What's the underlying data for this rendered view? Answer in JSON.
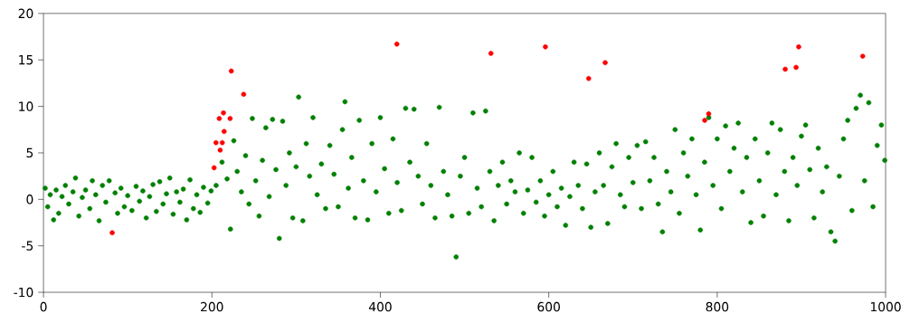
{
  "chart_data": {
    "type": "scatter",
    "xlim": [
      0,
      1000
    ],
    "ylim": [
      -10,
      20
    ],
    "xticks": [
      0,
      200,
      400,
      600,
      800,
      1000
    ],
    "yticks": [
      -10,
      -5,
      0,
      5,
      10,
      15,
      20
    ],
    "marker": "circle",
    "series": [
      {
        "color": "#008000",
        "x": [
          2,
          5,
          8,
          12,
          15,
          18,
          22,
          26,
          30,
          35,
          38,
          42,
          46,
          50,
          55,
          58,
          62,
          66,
          70,
          74,
          78,
          85,
          88,
          92,
          96,
          100,
          105,
          110,
          114,
          118,
          122,
          126,
          130,
          134,
          138,
          142,
          146,
          150,
          154,
          158,
          162,
          166,
          170,
          174,
          178,
          182,
          186,
          190,
          195,
          199,
          205,
          212,
          218,
          222,
          226,
          230,
          235,
          240,
          244,
          248,
          252,
          256,
          260,
          264,
          268,
          272,
          276,
          280,
          284,
          288,
          292,
          296,
          300,
          303,
          308,
          312,
          316,
          320,
          325,
          330,
          335,
          340,
          345,
          350,
          355,
          358,
          362,
          366,
          370,
          375,
          380,
          385,
          390,
          395,
          400,
          405,
          410,
          415,
          420,
          425,
          430,
          435,
          440,
          445,
          450,
          455,
          460,
          465,
          470,
          475,
          480,
          485,
          490,
          495,
          500,
          505,
          510,
          515,
          520,
          525,
          530,
          535,
          540,
          545,
          550,
          555,
          560,
          565,
          570,
          575,
          580,
          585,
          590,
          595,
          600,
          605,
          610,
          615,
          620,
          625,
          630,
          635,
          640,
          645,
          650,
          655,
          660,
          665,
          670,
          675,
          680,
          685,
          690,
          695,
          700,
          705,
          710,
          715,
          720,
          725,
          730,
          735,
          740,
          745,
          750,
          755,
          760,
          765,
          770,
          775,
          780,
          785,
          790,
          795,
          800,
          805,
          810,
          815,
          820,
          825,
          830,
          835,
          840,
          845,
          850,
          855,
          860,
          865,
          870,
          875,
          880,
          885,
          890,
          895,
          900,
          905,
          910,
          915,
          920,
          925,
          930,
          935,
          940,
          945,
          950,
          955,
          960,
          965,
          970,
          975,
          980,
          985,
          990,
          995,
          999
        ],
        "values": [
          1.2,
          -0.8,
          0.5,
          -2.2,
          1.0,
          -1.5,
          0.3,
          1.5,
          -0.5,
          0.8,
          2.3,
          -1.8,
          0.2,
          1.0,
          -1.0,
          2.0,
          0.5,
          -2.3,
          1.5,
          -0.3,
          2.0,
          0.7,
          -1.5,
          1.2,
          -0.8,
          0.4,
          -1.2,
          1.4,
          -0.2,
          0.9,
          -2.0,
          0.3,
          1.6,
          -1.3,
          1.9,
          -0.5,
          0.6,
          2.3,
          -1.6,
          0.8,
          -0.3,
          1.1,
          -2.2,
          2.1,
          -1.0,
          0.5,
          -1.4,
          1.3,
          -0.4,
          0.9,
          1.5,
          4.0,
          2.2,
          -3.2,
          6.3,
          3.0,
          0.8,
          4.7,
          -0.5,
          8.7,
          2.0,
          -1.8,
          4.2,
          7.7,
          0.3,
          8.6,
          3.2,
          -4.2,
          8.4,
          1.5,
          5.0,
          -2.0,
          3.5,
          11.0,
          -2.3,
          6.0,
          2.5,
          8.8,
          0.5,
          3.8,
          -1.0,
          5.8,
          2.7,
          -0.8,
          7.5,
          10.5,
          1.2,
          4.5,
          -2.0,
          8.5,
          2.0,
          -2.2,
          6.0,
          0.8,
          8.8,
          3.3,
          -1.5,
          6.5,
          1.8,
          -1.2,
          9.8,
          4.0,
          9.7,
          2.5,
          -0.5,
          6.0,
          1.5,
          -2.0,
          9.9,
          3.0,
          0.5,
          -1.8,
          -6.2,
          2.5,
          4.5,
          -1.5,
          9.3,
          1.2,
          -0.8,
          9.5,
          3.0,
          -2.3,
          1.5,
          4.0,
          -0.5,
          2.0,
          0.8,
          5.0,
          -1.5,
          1.0,
          4.5,
          -0.3,
          2.0,
          -1.8,
          0.5,
          3.0,
          -0.8,
          1.2,
          -2.8,
          0.3,
          4.0,
          1.5,
          -1.0,
          3.8,
          -3.0,
          0.8,
          5.0,
          1.5,
          -2.6,
          3.5,
          6.0,
          0.5,
          -0.8,
          4.5,
          1.8,
          5.8,
          -1.0,
          6.2,
          2.0,
          4.5,
          -0.5,
          -3.5,
          3.0,
          0.8,
          7.5,
          -1.5,
          5.0,
          2.5,
          6.5,
          0.5,
          -3.3,
          4.0,
          8.8,
          1.5,
          6.5,
          -1.0,
          7.9,
          3.0,
          5.5,
          8.2,
          0.8,
          4.5,
          -2.5,
          6.5,
          2.0,
          -1.8,
          5.0,
          8.2,
          0.5,
          7.5,
          3.0,
          -2.3,
          4.5,
          1.5,
          6.8,
          8.0,
          3.2,
          -2.0,
          5.5,
          0.8,
          3.5,
          -3.5,
          -4.5,
          2.5,
          6.5,
          8.5,
          -1.2,
          9.8,
          11.2,
          2.0,
          10.4,
          -0.8,
          5.8,
          8.0,
          4.2
        ]
      },
      {
        "color": "#ff0000",
        "x": [
          81.6,
          202.6,
          204.8,
          208.7,
          209.8,
          212.3,
          213.7,
          214.5,
          221.6,
          223,
          237.7,
          419.6,
          531.3,
          596,
          647.4,
          667,
          785.2,
          789.9,
          880.8,
          893.7,
          896.8,
          972.8
        ],
        "values": [
          -3.6,
          3.4,
          6.1,
          8.7,
          5.3,
          6.1,
          9.3,
          7.3,
          8.7,
          13.8,
          11.3,
          16.7,
          15.7,
          16.4,
          13.0,
          14.7,
          8.5,
          9.2,
          14.0,
          14.2,
          16.4,
          15.4
        ]
      }
    ]
  }
}
